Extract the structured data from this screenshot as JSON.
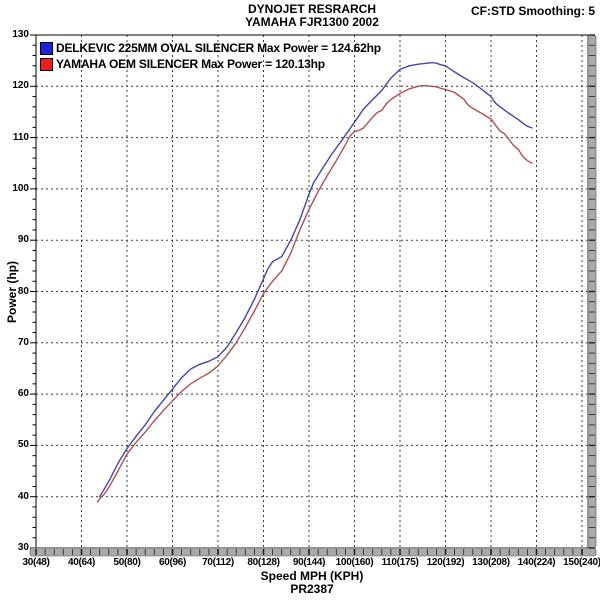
{
  "header": {
    "line1": "DYNOJET RESRARCH",
    "line2": "YAMAHA FJR1300 2002",
    "smoothing": "CF:STD Smoothing: 5"
  },
  "footer": {
    "run_id": "PR2387"
  },
  "colors": {
    "delkevic_curve": "#4646a8",
    "oem_curve": "#b05050",
    "delkevic_swatch": "#2020dd",
    "oem_swatch": "#ee1c1c",
    "grid": "#3a3a3a",
    "axis_bar": "#aaaaaa"
  },
  "chart_data": {
    "type": "line",
    "title": "DYNOJET RESRARCH YAMAHA FJR1300 2002",
    "xlabel": "Speed MPH (KPH)",
    "ylabel": "Power (hp)",
    "xlim": [
      30,
      150
    ],
    "ylim": [
      30,
      130
    ],
    "x_tick_labels": [
      "30(48)",
      "40(64)",
      "50(80)",
      "60(96)",
      "70(112)",
      "80(128)",
      "90(144)",
      "100(160)",
      "110(175)",
      "120(192)",
      "130(208)",
      "140(224)",
      "150(240)"
    ],
    "x_tick_values": [
      30,
      40,
      50,
      60,
      70,
      80,
      90,
      100,
      110,
      120,
      130,
      140,
      150
    ],
    "y_tick_values": [
      30,
      40,
      50,
      60,
      70,
      80,
      90,
      100,
      110,
      120,
      130
    ],
    "grid": "dashed, both axes, every 10 units",
    "legend_position": "top-left",
    "series": [
      {
        "name": "DELKEVIC 225MM OVAL SILENCER",
        "legend_label": "DELKEVIC 225MM OVAL SILENCER Max Power = 124.62hp",
        "max_power_hp": 124.62,
        "points": [
          [
            44,
            40
          ],
          [
            45,
            41.5
          ],
          [
            46,
            43
          ],
          [
            48,
            46.5
          ],
          [
            50,
            49.4
          ],
          [
            52,
            51.8
          ],
          [
            54,
            54
          ],
          [
            56,
            56.6
          ],
          [
            58,
            58.8
          ],
          [
            60,
            61
          ],
          [
            62,
            63.2
          ],
          [
            64,
            64.9
          ],
          [
            66,
            65.8
          ],
          [
            68,
            66.4
          ],
          [
            70,
            67.3
          ],
          [
            72,
            69.2
          ],
          [
            74,
            72
          ],
          [
            76,
            75
          ],
          [
            78,
            78.5
          ],
          [
            80,
            82.5
          ],
          [
            81,
            84.5
          ],
          [
            82,
            85.8
          ],
          [
            84,
            86.8
          ],
          [
            86,
            90
          ],
          [
            88,
            94
          ],
          [
            90,
            99
          ],
          [
            91,
            101.2
          ],
          [
            93,
            104
          ],
          [
            95,
            106.8
          ],
          [
            97,
            109.2
          ],
          [
            100,
            113
          ],
          [
            102,
            115.6
          ],
          [
            104,
            117.4
          ],
          [
            106,
            119.2
          ],
          [
            108,
            121.6
          ],
          [
            110,
            123.3
          ],
          [
            112,
            124
          ],
          [
            114,
            124.3
          ],
          [
            116,
            124.5
          ],
          [
            117,
            124.62
          ],
          [
            118,
            124.5
          ],
          [
            119,
            124.2
          ],
          [
            120,
            124
          ],
          [
            121,
            123.4
          ],
          [
            122,
            122.8
          ],
          [
            124,
            121.7
          ],
          [
            126,
            120.7
          ],
          [
            128,
            119.4
          ],
          [
            130,
            118
          ],
          [
            131,
            116.7
          ],
          [
            132,
            116
          ],
          [
            134,
            114.7
          ],
          [
            136,
            113.5
          ],
          [
            137,
            112.8
          ],
          [
            138,
            112.2
          ],
          [
            139,
            111.9
          ]
        ]
      },
      {
        "name": "YAMAHA OEM SILENCER",
        "legend_label": "YAMAHA OEM SILENCER Max Power = 120.13hp",
        "max_power_hp": 120.13,
        "points": [
          [
            43.5,
            39
          ],
          [
            44,
            39.6
          ],
          [
            45,
            40.5
          ],
          [
            46,
            41.8
          ],
          [
            48,
            45
          ],
          [
            50,
            48.3
          ],
          [
            52,
            50.6
          ],
          [
            54,
            52.6
          ],
          [
            56,
            54.8
          ],
          [
            58,
            56.8
          ],
          [
            60,
            58.7
          ],
          [
            62,
            60.5
          ],
          [
            64,
            62
          ],
          [
            66,
            63.1
          ],
          [
            68,
            64.1
          ],
          [
            70,
            65.5
          ],
          [
            72,
            67.6
          ],
          [
            74,
            70
          ],
          [
            76,
            73
          ],
          [
            78,
            76.2
          ],
          [
            80,
            79.6
          ],
          [
            82,
            82
          ],
          [
            84,
            84
          ],
          [
            86,
            87.5
          ],
          [
            88,
            92
          ],
          [
            90,
            96
          ],
          [
            92,
            99.5
          ],
          [
            94,
            102.6
          ],
          [
            96,
            105.5
          ],
          [
            98,
            108.6
          ],
          [
            99,
            110.3
          ],
          [
            100,
            111.2
          ],
          [
            101,
            111.4
          ],
          [
            102,
            111.9
          ],
          [
            104,
            114
          ],
          [
            105,
            114.9
          ],
          [
            106,
            115.3
          ],
          [
            107,
            116.6
          ],
          [
            108,
            117.4
          ],
          [
            110,
            118.6
          ],
          [
            112,
            119.5
          ],
          [
            114,
            120
          ],
          [
            115,
            120.13
          ],
          [
            116,
            120.1
          ],
          [
            117,
            120
          ],
          [
            118,
            119.9
          ],
          [
            119,
            119.6
          ],
          [
            120,
            119.4
          ],
          [
            121,
            119.1
          ],
          [
            122,
            118.8
          ],
          [
            124,
            117.5
          ],
          [
            125,
            116.3
          ],
          [
            126,
            115.7
          ],
          [
            128,
            114.7
          ],
          [
            130,
            113.6
          ],
          [
            131,
            112.4
          ],
          [
            132,
            111.3
          ],
          [
            133,
            110.7
          ],
          [
            134,
            109.6
          ],
          [
            135,
            108.4
          ],
          [
            136,
            107.7
          ],
          [
            137,
            106.3
          ],
          [
            138,
            105.5
          ],
          [
            139,
            105
          ]
        ]
      }
    ]
  }
}
